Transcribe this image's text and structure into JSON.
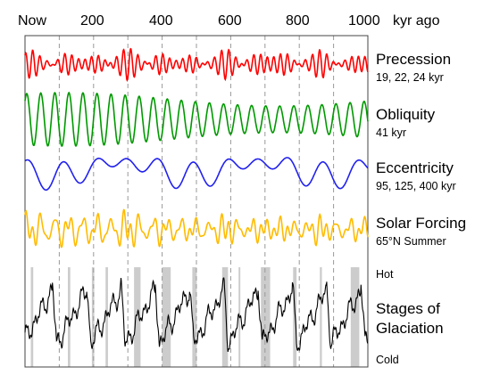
{
  "chart_data": {
    "type": "line",
    "x_axis": {
      "position": "top",
      "ticks": [
        "Now",
        "200",
        "400",
        "600",
        "800",
        "1000"
      ],
      "tick_values": [
        0,
        200,
        400,
        600,
        800,
        1000
      ],
      "unit": "kyr ago",
      "range": [
        0,
        1000
      ],
      "gridlines": [
        0,
        100,
        200,
        300,
        400,
        500,
        600,
        700,
        800,
        900,
        1000
      ]
    },
    "series": [
      {
        "name": "Precession",
        "detail": "19, 22, 24 kyr",
        "color": "#ff0000",
        "periods": [
          19,
          22,
          24
        ]
      },
      {
        "name": "Obliquity",
        "detail": "41 kyr",
        "color": "#009900",
        "periods": [
          41
        ]
      },
      {
        "name": "Eccentricity",
        "detail": "95, 125, 400 kyr",
        "color": "#2222ee",
        "periods": [
          95,
          125,
          400
        ]
      },
      {
        "name": "Solar Forcing",
        "detail": "65°N Summer",
        "color": "#ffbb00"
      },
      {
        "name": "Stages of Glaciation",
        "title_lines": [
          "Stages of",
          "Glaciation"
        ],
        "color": "#000000",
        "top_label": "Hot",
        "bottom_label": "Cold",
        "interglacial_bands": [
          [
            17,
            24
          ],
          [
            125,
            132
          ],
          [
            195,
            202
          ],
          [
            235,
            242
          ],
          [
            318,
            337
          ],
          [
            400,
            425
          ],
          [
            488,
            501
          ],
          [
            575,
            592
          ],
          [
            623,
            628
          ],
          [
            688,
            715
          ],
          [
            782,
            792
          ],
          [
            860,
            866
          ],
          [
            950,
            975
          ]
        ]
      }
    ],
    "grid": true
  }
}
